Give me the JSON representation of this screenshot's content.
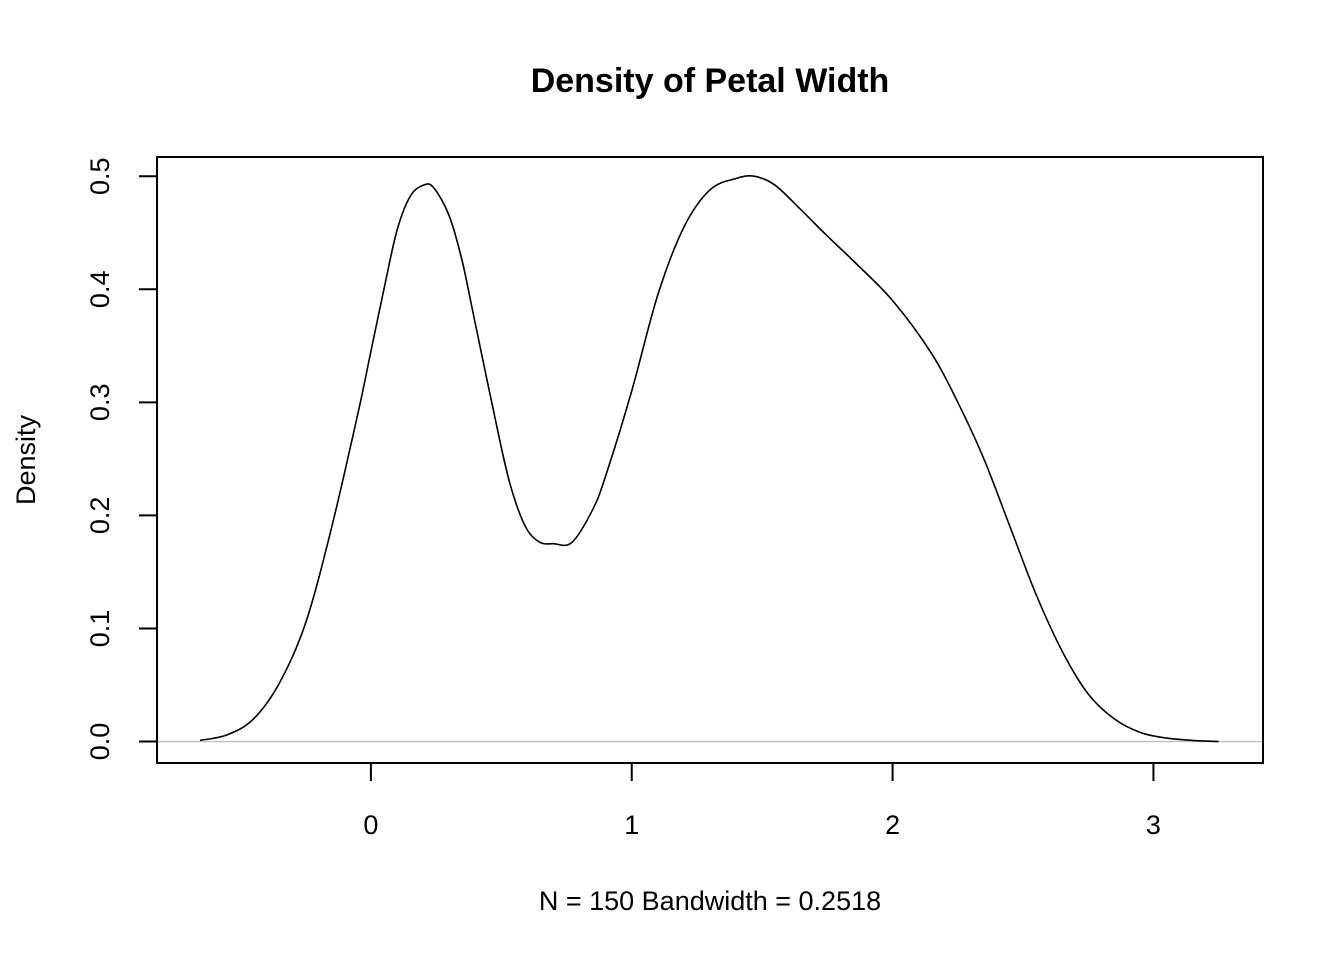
{
  "chart_data": {
    "type": "line",
    "title": "Density of Petal Width",
    "xlabel": "N = 150   Bandwidth = 0.2518",
    "ylabel": "Density",
    "xlim": [
      -0.82,
      3.42
    ],
    "ylim": [
      -0.019,
      0.517
    ],
    "x_ticks": [
      0,
      1,
      2,
      3
    ],
    "x_tick_labels": [
      "0",
      "1",
      "2",
      "3"
    ],
    "y_ticks": [
      0,
      0.1,
      0.2,
      0.3,
      0.4,
      0.5
    ],
    "y_tick_labels": [
      "0.0",
      "0.1",
      "0.2",
      "0.3",
      "0.4",
      "0.5"
    ],
    "grid": false,
    "baseline": 0,
    "series": [
      {
        "x": [
          -0.655,
          -0.55,
          -0.45,
          -0.35,
          -0.25,
          -0.15,
          -0.05,
          0.0,
          0.05,
          0.1,
          0.15,
          0.2,
          0.24,
          0.3,
          0.35,
          0.4,
          0.5,
          0.55,
          0.6,
          0.65,
          0.7,
          0.77,
          0.85,
          0.9,
          1.0,
          1.1,
          1.2,
          1.3,
          1.4,
          1.47,
          1.55,
          1.65,
          1.75,
          1.85,
          2.0,
          2.15,
          2.25,
          2.35,
          2.45,
          2.55,
          2.65,
          2.75,
          2.85,
          2.95,
          3.05,
          3.15,
          3.25
        ],
        "y": [
          0.001,
          0.006,
          0.02,
          0.052,
          0.105,
          0.19,
          0.29,
          0.345,
          0.4,
          0.452,
          0.482,
          0.492,
          0.49,
          0.465,
          0.425,
          0.37,
          0.26,
          0.215,
          0.187,
          0.176,
          0.175,
          0.176,
          0.205,
          0.235,
          0.31,
          0.395,
          0.455,
          0.488,
          0.498,
          0.5,
          0.492,
          0.47,
          0.447,
          0.425,
          0.39,
          0.343,
          0.3,
          0.25,
          0.19,
          0.13,
          0.08,
          0.042,
          0.02,
          0.008,
          0.003,
          0.001,
          0.0
        ]
      }
    ]
  }
}
